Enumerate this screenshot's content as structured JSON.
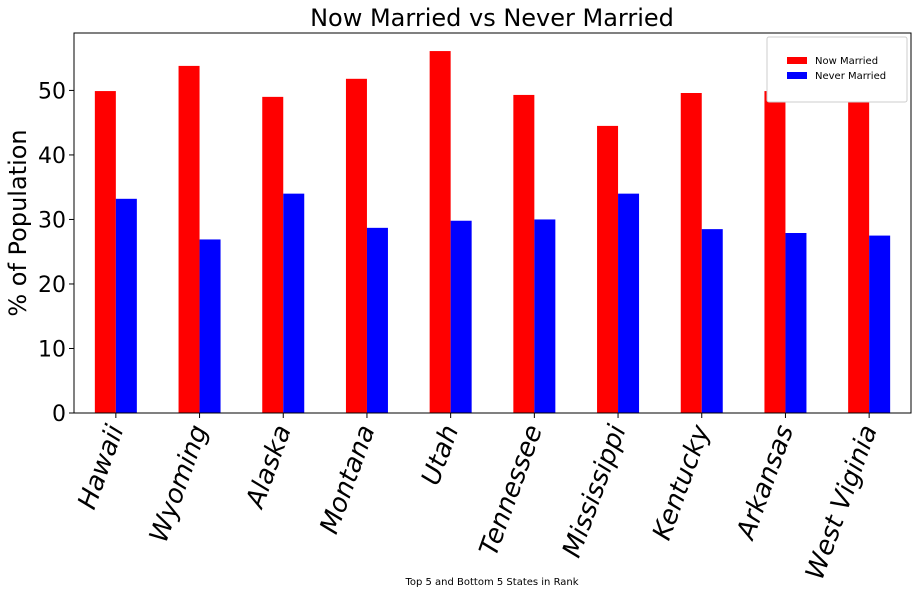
{
  "chart_data": {
    "type": "bar",
    "title": "Now Married vs Never Married",
    "xlabel": "Top 5 and Bottom 5 States in Rank",
    "ylabel": "% of Population",
    "categories": [
      "Hawaii",
      "Wyoming",
      "Alaska",
      "Montana",
      "Utah",
      "Tennessee",
      "Mississippi",
      "Kentucky",
      "Arkansas",
      "West Viginia"
    ],
    "series": [
      {
        "name": "Now Married",
        "color": "#ff0000",
        "values": [
          49.9,
          53.8,
          49.0,
          51.8,
          56.1,
          49.3,
          44.5,
          49.6,
          49.9,
          49.9
        ]
      },
      {
        "name": "Never Married",
        "color": "#0000ff",
        "values": [
          33.2,
          26.9,
          34.0,
          28.7,
          29.8,
          30.0,
          34.0,
          28.5,
          27.9,
          27.5
        ]
      }
    ],
    "ylim": [
      0,
      58.9
    ],
    "yticks": [
      "0",
      "10",
      "20",
      "30",
      "40",
      "50"
    ],
    "legend": "top-right",
    "grid": false
  }
}
